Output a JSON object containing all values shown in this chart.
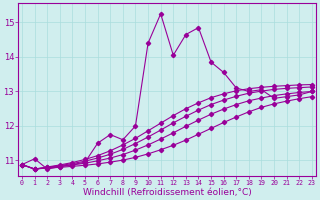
{
  "bg_color": "#d0eeee",
  "line_color": "#990099",
  "grid_color": "#aadddd",
  "xlabel": "Windchill (Refroidissement éolien,°C)",
  "xlabel_fontsize": 6.5,
  "ylabel_ticks": [
    11,
    12,
    13,
    14,
    15
  ],
  "xticks": [
    0,
    1,
    2,
    3,
    4,
    5,
    6,
    7,
    8,
    9,
    10,
    11,
    12,
    13,
    14,
    15,
    16,
    17,
    18,
    19,
    20,
    21,
    22,
    23
  ],
  "xlim": [
    -0.3,
    23.3
  ],
  "ylim": [
    10.55,
    15.55
  ],
  "linear_lines": [
    [
      10.88,
      10.75,
      10.78,
      10.8,
      10.83,
      10.86,
      10.9,
      10.95,
      11.01,
      11.09,
      11.19,
      11.31,
      11.44,
      11.59,
      11.76,
      11.93,
      12.1,
      12.26,
      12.41,
      12.54,
      12.64,
      12.72,
      12.79,
      12.85
    ],
    [
      10.88,
      10.75,
      10.79,
      10.83,
      10.87,
      10.92,
      10.99,
      11.07,
      11.17,
      11.3,
      11.45,
      11.62,
      11.8,
      11.99,
      12.17,
      12.34,
      12.49,
      12.62,
      12.73,
      12.81,
      12.88,
      12.93,
      12.97,
      13.0
    ],
    [
      10.88,
      10.75,
      10.8,
      10.85,
      10.91,
      10.98,
      11.07,
      11.18,
      11.32,
      11.49,
      11.68,
      11.88,
      12.09,
      12.28,
      12.46,
      12.62,
      12.75,
      12.86,
      12.95,
      13.01,
      13.06,
      13.09,
      13.11,
      13.13
    ],
    [
      10.88,
      10.75,
      10.81,
      10.87,
      10.94,
      11.03,
      11.14,
      11.28,
      11.45,
      11.64,
      11.86,
      12.08,
      12.3,
      12.5,
      12.67,
      12.82,
      12.93,
      13.02,
      13.08,
      13.12,
      13.15,
      13.17,
      13.19,
      13.2
    ]
  ],
  "jagged_x": [
    0,
    1,
    2,
    3,
    4,
    5,
    6,
    7,
    8,
    9,
    10,
    11,
    12,
    13,
    14,
    15,
    16,
    17,
    18,
    19,
    20,
    21,
    22,
    23
  ],
  "jagged_y": [
    10.88,
    11.05,
    10.75,
    10.82,
    10.88,
    10.95,
    11.5,
    11.75,
    11.6,
    12.0,
    14.4,
    15.25,
    14.05,
    14.65,
    14.85,
    13.85,
    13.55,
    13.1,
    13.0,
    13.05,
    12.8,
    12.85,
    12.9,
    13.0
  ]
}
